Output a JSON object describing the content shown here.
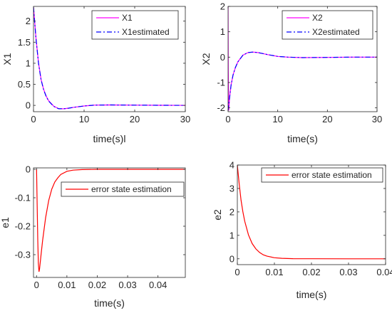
{
  "chart_data": [
    {
      "type": "line",
      "id": "x1",
      "xlabel": "time(s)l",
      "ylabel": "X1",
      "xlim": [
        0,
        30
      ],
      "ylim": [
        -0.15,
        2.35
      ],
      "xticks": [
        0,
        10,
        20,
        30
      ],
      "yticks": [
        0,
        0.5,
        1,
        1.5,
        2
      ],
      "ytick_labels": [
        "0",
        "0.5",
        "1",
        "1.5",
        "2"
      ],
      "legend": "top-right",
      "grid": false,
      "series": [
        {
          "name": "X1",
          "color": "#ff00ff",
          "style": "solid",
          "x": [
            0,
            0.1,
            0.5,
            1,
            1.5,
            2,
            2.5,
            3,
            4,
            5,
            6,
            7,
            8,
            10,
            12,
            15,
            20,
            25,
            30
          ],
          "y": [
            2.33,
            2.2,
            1.6,
            1.0,
            0.62,
            0.38,
            0.22,
            0.11,
            -0.02,
            -0.08,
            -0.08,
            -0.065,
            -0.045,
            -0.015,
            0.005,
            0.01,
            0.005,
            0.002,
            0.0
          ]
        },
        {
          "name": "X1estimated",
          "color": "#0000ff",
          "style": "dashdot",
          "x": [
            0,
            0.1,
            0.5,
            1,
            1.5,
            2,
            2.5,
            3,
            4,
            5,
            6,
            7,
            8,
            10,
            12,
            15,
            20,
            25,
            30
          ],
          "y": [
            2.33,
            2.18,
            1.58,
            0.99,
            0.61,
            0.37,
            0.21,
            0.1,
            -0.025,
            -0.08,
            -0.08,
            -0.065,
            -0.045,
            -0.015,
            0.005,
            0.01,
            0.005,
            0.002,
            0.0
          ]
        }
      ]
    },
    {
      "type": "line",
      "id": "x2",
      "xlabel": "time(s)",
      "ylabel": "X2",
      "xlim": [
        0,
        30
      ],
      "ylim": [
        -2.15,
        2.0
      ],
      "xticks": [
        0,
        10,
        20,
        30
      ],
      "yticks": [
        -2,
        -1,
        0,
        1,
        2
      ],
      "ytick_labels": [
        "-2",
        "-1",
        "0",
        "1",
        "2"
      ],
      "legend": "top-right",
      "grid": false,
      "series": [
        {
          "name": "X2",
          "color": "#ff00ff",
          "style": "solid",
          "x": [
            0,
            0.05,
            0.15,
            0.3,
            0.6,
            1,
            1.5,
            2,
            3,
            4,
            5,
            6,
            7,
            8,
            10,
            12,
            15,
            20,
            25,
            30
          ],
          "y": [
            2.0,
            -0.5,
            -2.1,
            -1.6,
            -1.1,
            -0.7,
            -0.4,
            -0.18,
            0.08,
            0.18,
            0.2,
            0.18,
            0.14,
            0.1,
            0.03,
            0.0,
            -0.02,
            -0.01,
            0.0,
            0.0
          ]
        },
        {
          "name": "X2estimated",
          "color": "#0000ff",
          "style": "dashdot",
          "x": [
            0,
            0.3,
            0.6,
            1,
            1.5,
            2,
            3,
            4,
            5,
            6,
            7,
            8,
            10,
            12,
            15,
            20,
            25,
            30
          ],
          "y": [
            -2.1,
            -1.6,
            -1.1,
            -0.7,
            -0.4,
            -0.18,
            0.08,
            0.18,
            0.2,
            0.18,
            0.14,
            0.1,
            0.03,
            0.0,
            -0.02,
            -0.01,
            0.0,
            0.0
          ]
        }
      ]
    },
    {
      "type": "line",
      "id": "e1",
      "xlabel": "time(s)",
      "ylabel": "e1",
      "xlim": [
        -0.001,
        0.049
      ],
      "ylim": [
        -0.38,
        0.005
      ],
      "xticks": [
        0,
        0.01,
        0.02,
        0.03,
        0.04
      ],
      "xtick_labels": [
        "0",
        "0.01",
        "0.02",
        "0.03",
        "0.04"
      ],
      "yticks": [
        -0.3,
        -0.2,
        -0.1,
        0
      ],
      "ytick_labels": [
        "-0.3",
        "-0.2",
        "-0.1",
        "0"
      ],
      "legend": "upper-middle",
      "grid": false,
      "series": [
        {
          "name": "error state estimation",
          "color": "#ff0000",
          "style": "solid",
          "x": [
            0,
            0.0002,
            0.0004,
            0.0006,
            0.0008,
            0.001,
            0.0015,
            0.002,
            0.003,
            0.004,
            0.005,
            0.006,
            0.007,
            0.008,
            0.01,
            0.012,
            0.015,
            0.02,
            0.03,
            0.04,
            0.049
          ],
          "y": [
            0,
            -0.12,
            -0.25,
            -0.33,
            -0.36,
            -0.35,
            -0.3,
            -0.25,
            -0.17,
            -0.11,
            -0.07,
            -0.045,
            -0.03,
            -0.018,
            -0.007,
            -0.003,
            -0.001,
            0,
            0,
            0,
            0
          ]
        }
      ]
    },
    {
      "type": "line",
      "id": "e2",
      "xlabel": "time(s)",
      "ylabel": "e2",
      "xlim": [
        0,
        0.04
      ],
      "ylim": [
        -0.25,
        4.0
      ],
      "xticks": [
        0,
        0.01,
        0.02,
        0.03,
        0.04
      ],
      "xtick_labels": [
        "0",
        "0.01",
        "0.02",
        "0.03",
        "0.04"
      ],
      "yticks": [
        0,
        1,
        2,
        3,
        4
      ],
      "ytick_labels": [
        "0",
        "1",
        "2",
        "3",
        "4"
      ],
      "legend": "top-right",
      "grid": false,
      "series": [
        {
          "name": "error state estimation",
          "color": "#ff0000",
          "style": "solid",
          "x": [
            0,
            0.0005,
            0.001,
            0.0015,
            0.002,
            0.003,
            0.004,
            0.005,
            0.006,
            0.007,
            0.008,
            0.01,
            0.012,
            0.015,
            0.02,
            0.03,
            0.04
          ],
          "y": [
            4.0,
            3.2,
            2.5,
            2.0,
            1.6,
            1.02,
            0.65,
            0.42,
            0.27,
            0.17,
            0.11,
            0.045,
            0.02,
            0.006,
            0.001,
            0,
            0
          ]
        }
      ]
    }
  ]
}
